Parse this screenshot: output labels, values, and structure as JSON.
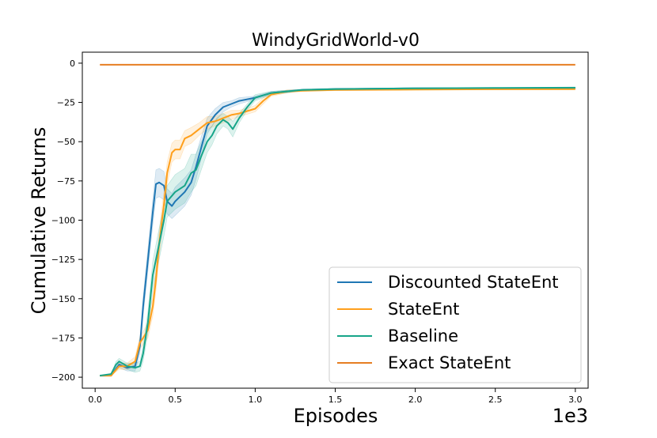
{
  "chart_data": {
    "type": "line",
    "title": "WindyGridWorld-v0",
    "xlabel": "Episodes",
    "ylabel": "Cumulative Returns",
    "x_offset_label": "1e3",
    "xlim": [
      -0.08,
      3.08
    ],
    "ylim": [
      -207,
      7
    ],
    "xticks": [
      0.0,
      0.5,
      1.0,
      1.5,
      2.0,
      2.5,
      3.0
    ],
    "xtick_labels": [
      "0.0",
      "0.5",
      "1.0",
      "1.5",
      "2.0",
      "2.5",
      "3.0"
    ],
    "yticks": [
      0,
      -25,
      -50,
      -75,
      -100,
      -125,
      -150,
      -175,
      -200
    ],
    "ytick_labels": [
      "0",
      "−25",
      "−50",
      "−75",
      "−100",
      "−125",
      "−150",
      "−175",
      "−200"
    ],
    "grid": false,
    "legend_position": "lower-right",
    "series": [
      {
        "name": "Discounted StateEnt",
        "color": "#1f77b4",
        "x": [
          0.03,
          0.1,
          0.15,
          0.2,
          0.25,
          0.28,
          0.3,
          0.33,
          0.36,
          0.38,
          0.4,
          0.43,
          0.45,
          0.48,
          0.5,
          0.53,
          0.56,
          0.6,
          0.63,
          0.66,
          0.7,
          0.75,
          0.8,
          0.85,
          0.9,
          1.0,
          1.1,
          1.3,
          1.5,
          2.0,
          2.5,
          3.0
        ],
        "y": [
          -199,
          -199,
          -192,
          -194,
          -193,
          -180,
          -155,
          -125,
          -95,
          -77,
          -76,
          -78,
          -88,
          -91,
          -88,
          -85,
          -82,
          -76,
          -66,
          -55,
          -40,
          -33,
          -28,
          -26,
          -24,
          -22,
          -19,
          -17,
          -16.5,
          -16,
          -16,
          -15.8
        ],
        "band": [
          0,
          0,
          2,
          2,
          3,
          5,
          6,
          7,
          8,
          9,
          9,
          9,
          8,
          8,
          9,
          9,
          9,
          8,
          8,
          7,
          5,
          4,
          3,
          2,
          2,
          1,
          1,
          0.5,
          0.5,
          0.3,
          0.3,
          0.3
        ]
      },
      {
        "name": "StateEnt",
        "color": "#ff9f1c",
        "x": [
          0.03,
          0.1,
          0.15,
          0.2,
          0.25,
          0.28,
          0.3,
          0.33,
          0.36,
          0.38,
          0.4,
          0.43,
          0.45,
          0.48,
          0.5,
          0.53,
          0.56,
          0.6,
          0.65,
          0.7,
          0.75,
          0.8,
          0.85,
          0.9,
          1.0,
          1.05,
          1.1,
          1.2,
          1.3,
          1.5,
          2.0,
          2.5,
          3.0
        ],
        "y": [
          -199,
          -199,
          -193,
          -193,
          -190,
          -178,
          -175,
          -170,
          -155,
          -138,
          -115,
          -90,
          -70,
          -57,
          -55,
          -55,
          -48,
          -46,
          -42,
          -38,
          -37,
          -35,
          -33,
          -32,
          -29,
          -24,
          -20,
          -18,
          -17.5,
          -17,
          -16.8,
          -16.6,
          -16.5
        ],
        "band": [
          0,
          0,
          2,
          2,
          3,
          4,
          4,
          5,
          6,
          7,
          8,
          8,
          7,
          6,
          6,
          6,
          5,
          5,
          4,
          4,
          3,
          3,
          3,
          2,
          2,
          2,
          1,
          1,
          0.5,
          0.5,
          0.3,
          0.3,
          0.3
        ]
      },
      {
        "name": "Baseline",
        "color": "#17a589",
        "x": [
          0.03,
          0.1,
          0.13,
          0.15,
          0.2,
          0.25,
          0.28,
          0.3,
          0.33,
          0.36,
          0.4,
          0.43,
          0.45,
          0.5,
          0.53,
          0.56,
          0.6,
          0.63,
          0.66,
          0.7,
          0.73,
          0.76,
          0.8,
          0.83,
          0.86,
          0.9,
          0.95,
          1.0,
          1.1,
          1.3,
          1.5,
          2.0,
          2.5,
          3.0
        ],
        "y": [
          -199,
          -198,
          -192,
          -190,
          -193,
          -194,
          -193,
          -185,
          -165,
          -135,
          -115,
          -100,
          -88,
          -82,
          -80,
          -78,
          -70,
          -68,
          -60,
          -50,
          -46,
          -40,
          -36,
          -38,
          -42,
          -35,
          -28,
          -22,
          -19,
          -17,
          -16.5,
          -16,
          -15.8,
          -15.6
        ],
        "band": [
          0,
          0,
          2,
          2,
          2,
          3,
          3,
          5,
          7,
          9,
          10,
          10,
          10,
          11,
          11,
          11,
          12,
          10,
          9,
          7,
          6,
          5,
          4,
          4,
          5,
          3,
          2,
          2,
          1,
          0.5,
          0.5,
          0.3,
          0.3,
          0.3
        ]
      },
      {
        "name": "Exact StateEnt",
        "color": "#e67e22",
        "x": [
          0.03,
          3.0
        ],
        "y": [
          -1,
          -1
        ],
        "band": [
          0,
          0
        ]
      }
    ]
  }
}
